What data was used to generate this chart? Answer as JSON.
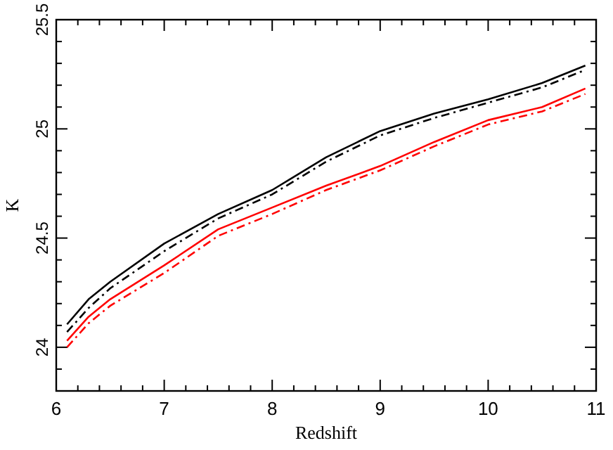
{
  "chart_data": {
    "type": "line",
    "xlabel": "Redshift",
    "ylabel": "K",
    "x": [
      6.1,
      6.3,
      6.5,
      7,
      7.5,
      8,
      8.5,
      9,
      9.5,
      10,
      10.5,
      10.9
    ],
    "series": [
      {
        "color": "#000000",
        "line_style": "solid",
        "values": [
          24.105,
          24.22,
          24.3,
          24.475,
          24.61,
          24.72,
          24.87,
          24.99,
          25.07,
          25.135,
          25.21,
          25.29
        ]
      },
      {
        "color": "#000000",
        "line_style": "dashed",
        "values": [
          24.07,
          24.18,
          24.27,
          24.44,
          24.59,
          24.7,
          24.85,
          24.97,
          25.05,
          25.12,
          25.19,
          25.27
        ]
      },
      {
        "color": "#ff0000",
        "line_style": "solid",
        "values": [
          24.03,
          24.14,
          24.22,
          24.375,
          24.54,
          24.64,
          24.74,
          24.83,
          24.94,
          25.04,
          25.1,
          25.185
        ]
      },
      {
        "color": "#ff0000",
        "line_style": "dashed",
        "values": [
          24.0,
          24.11,
          24.19,
          24.34,
          24.51,
          24.61,
          24.72,
          24.81,
          24.92,
          25.02,
          25.08,
          25.16
        ]
      }
    ],
    "xlim": [
      6,
      11
    ],
    "ylim": [
      23.8,
      25.5
    ],
    "xticks": [
      6,
      {
        "value": 6.2,
        "label": null
      },
      {
        "value": 6.4,
        "label": null
      },
      {
        "value": 6.6,
        "label": null
      },
      {
        "value": 6.8,
        "label": null
      },
      7,
      {
        "value": 7.2,
        "label": null
      },
      {
        "value": 7.4,
        "label": null
      },
      {
        "value": 7.6,
        "label": null
      },
      {
        "value": 7.8,
        "label": null
      },
      8,
      {
        "value": 8.2,
        "label": null
      },
      {
        "value": 8.4,
        "label": null
      },
      {
        "value": 8.6,
        "label": null
      },
      {
        "value": 8.8,
        "label": null
      },
      9,
      {
        "value": 9.2,
        "label": null
      },
      {
        "value": 9.4,
        "label": null
      },
      {
        "value": 9.6,
        "label": null
      },
      {
        "value": 9.8,
        "label": null
      },
      10,
      {
        "value": 10.2,
        "label": null
      },
      {
        "value": 10.4,
        "label": null
      },
      {
        "value": 10.6,
        "label": null
      },
      {
        "value": 10.8,
        "label": null
      },
      11
    ],
    "yticks": [
      {
        "value": 23.9,
        "label": null
      },
      24,
      {
        "value": 24.1,
        "label": null
      },
      {
        "value": 24.2,
        "label": null
      },
      {
        "value": 24.3,
        "label": null
      },
      {
        "value": 24.4,
        "label": null
      },
      24.5,
      {
        "value": 24.6,
        "label": null
      },
      {
        "value": 24.7,
        "label": null
      },
      {
        "value": 24.8,
        "label": null
      },
      {
        "value": 24.9,
        "label": null
      },
      25,
      {
        "value": 25.1,
        "label": null
      },
      {
        "value": 25.2,
        "label": null
      },
      {
        "value": 25.3,
        "label": null
      },
      {
        "value": 25.4,
        "label": null
      },
      25.5
    ],
    "grid": false,
    "marker": "none"
  }
}
